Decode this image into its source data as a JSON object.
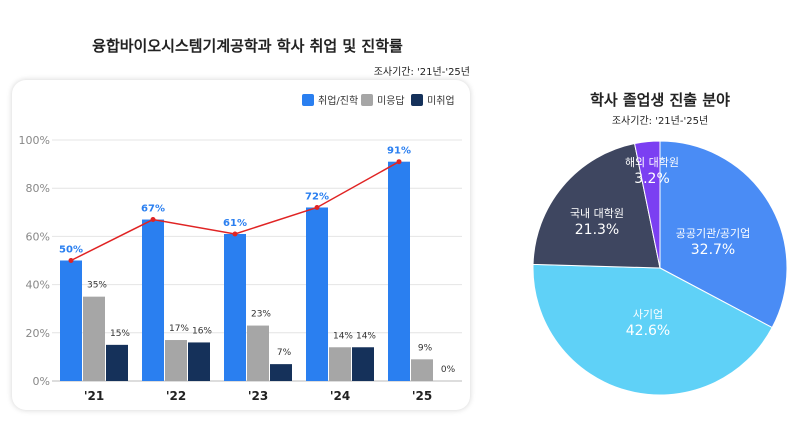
{
  "bar_chart": {
    "title": "융합바이오시스템기계공학과 학사 취업 및 진학률",
    "subtitle": "조사기간: '21년-'25년"
  },
  "pie_chart": {
    "title": "학사 졸업생 진출 분야",
    "subtitle": "조사기간: '21년-'25년"
  },
  "chart_data": [
    {
      "type": "bar",
      "title": "융합바이오시스템기계공학과 학사 취업 및 진학률",
      "subtitle": "조사기간: '21년-'25년",
      "categories": [
        "'21",
        "'22",
        "'23",
        "'24",
        "'25"
      ],
      "series": [
        {
          "name": "취업/진학",
          "values": [
            50,
            67,
            61,
            72,
            91
          ],
          "color": "#2a7ff0",
          "labels": [
            "50%",
            "67%",
            "61%",
            "72%",
            "91%"
          ]
        },
        {
          "name": "미응답",
          "values": [
            35,
            17,
            23,
            14,
            9
          ],
          "color": "#a6a6a6",
          "labels": [
            "35%",
            "17%",
            "23%",
            "14%",
            "9%"
          ]
        },
        {
          "name": "미취업",
          "values": [
            15,
            16,
            7,
            14,
            0
          ],
          "color": "#15315a",
          "labels": [
            "15%",
            "16%",
            "7%",
            "14%",
            "0%"
          ]
        }
      ],
      "trend_line": {
        "series": "취업/진학",
        "color": "#e02424"
      },
      "yticks": [
        "0%",
        "20%",
        "40%",
        "60%",
        "80%",
        "100%"
      ],
      "ylim": [
        0,
        100
      ],
      "grid": true,
      "legend": "top-right"
    },
    {
      "type": "pie",
      "title": "학사 졸업생 진출 분야",
      "subtitle": "조사기간: '21년-'25년",
      "slices": [
        {
          "label": "공공기관/공기업",
          "value": 32.7,
          "display": "32.7%",
          "color": "#4a8cf5"
        },
        {
          "label": "사기업",
          "value": 42.6,
          "display": "42.6%",
          "color": "#5fd1f7"
        },
        {
          "label": "국내 대학원",
          "value": 21.3,
          "display": "21.3%",
          "color": "#3e4660"
        },
        {
          "label": "해외 대학원",
          "value": 3.2,
          "display": "3.2%",
          "color": "#7b3ff2"
        }
      ]
    }
  ]
}
